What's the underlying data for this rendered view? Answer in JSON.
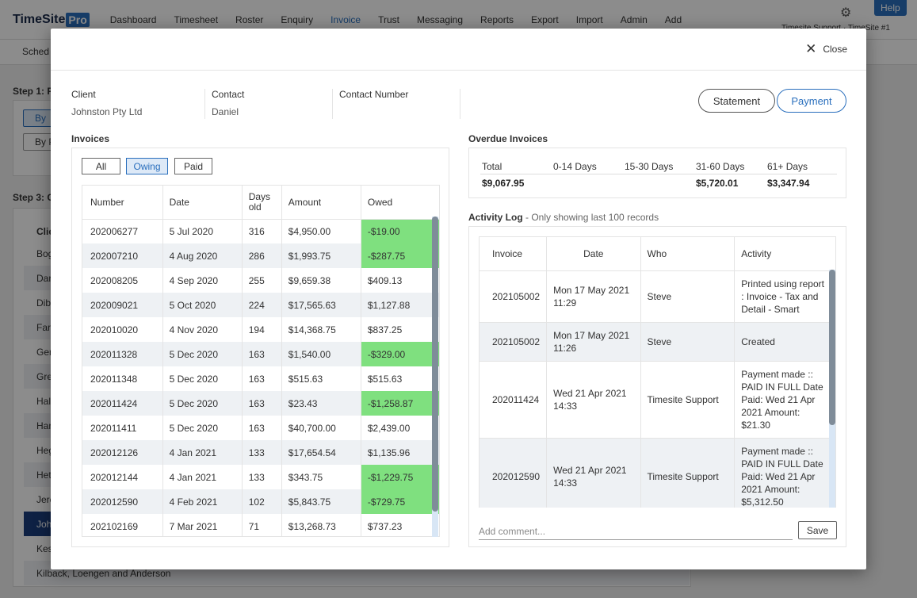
{
  "app": {
    "logo_main": "TimeSite",
    "logo_pro": "Pro",
    "nav": [
      "Dashboard",
      "Timesheet",
      "Roster",
      "Enquiry",
      "Invoice",
      "Trust",
      "Messaging",
      "Reports",
      "Export",
      "Import",
      "Admin",
      "Add"
    ],
    "help_label": "Help",
    "support_text": "Timesite Support · TimeSite #1",
    "subbar_text": "Sched",
    "step1": "Step 1: Fi",
    "step3": "Step 3: Cl",
    "bg_btn1": "By",
    "bg_btn2": "By P",
    "bg_col": "Clie",
    "bg_rows": [
      "Bog",
      "Dar",
      "Dibl",
      "Farr",
      "Ger",
      "Gre",
      "Hal",
      "Har",
      "Heg",
      "Het",
      "Jere",
      "Joh",
      "Kes",
      "Kilback, Loengen and Anderson"
    ]
  },
  "modal": {
    "close_label": "Close",
    "client_label": "Client",
    "client_value": "Johnston Pty Ltd",
    "contact_label": "Contact",
    "contact_value": "Daniel",
    "contact_number_label": "Contact Number",
    "contact_number_value": "",
    "statement_label": "Statement",
    "payment_label": "Payment",
    "invoices_title": "Invoices",
    "filters": {
      "all": "All",
      "owing": "Owing",
      "paid": "Paid"
    },
    "invoice_columns": {
      "number": "Number",
      "date": "Date",
      "days": "Days old",
      "amount": "Amount",
      "owed": "Owed"
    },
    "invoices": [
      {
        "number": "202006277",
        "date": "5 Jul 2020",
        "days": "316",
        "amount": "$4,950.00",
        "owed": "-$19.00",
        "negative": true
      },
      {
        "number": "202007210",
        "date": "4 Aug 2020",
        "days": "286",
        "amount": "$1,993.75",
        "owed": "-$287.75",
        "negative": true
      },
      {
        "number": "202008205",
        "date": "4 Sep 2020",
        "days": "255",
        "amount": "$9,659.38",
        "owed": "$409.13",
        "negative": false
      },
      {
        "number": "202009021",
        "date": "5 Oct 2020",
        "days": "224",
        "amount": "$17,565.63",
        "owed": "$1,127.88",
        "negative": false
      },
      {
        "number": "202010020",
        "date": "4 Nov 2020",
        "days": "194",
        "amount": "$14,368.75",
        "owed": "$837.25",
        "negative": false
      },
      {
        "number": "202011328",
        "date": "5 Dec 2020",
        "days": "163",
        "amount": "$1,540.00",
        "owed": "-$329.00",
        "negative": true
      },
      {
        "number": "202011348",
        "date": "5 Dec 2020",
        "days": "163",
        "amount": "$515.63",
        "owed": "$515.63",
        "negative": false
      },
      {
        "number": "202011424",
        "date": "5 Dec 2020",
        "days": "163",
        "amount": "$23.43",
        "owed": "-$1,258.87",
        "negative": true
      },
      {
        "number": "202011411",
        "date": "5 Dec 2020",
        "days": "163",
        "amount": "$40,700.00",
        "owed": "$2,439.00",
        "negative": false
      },
      {
        "number": "202012126",
        "date": "4 Jan 2021",
        "days": "133",
        "amount": "$17,654.54",
        "owed": "$1,135.96",
        "negative": false
      },
      {
        "number": "202012144",
        "date": "4 Jan 2021",
        "days": "133",
        "amount": "$343.75",
        "owed": "-$1,229.75",
        "negative": true
      },
      {
        "number": "202012590",
        "date": "4 Feb 2021",
        "days": "102",
        "amount": "$5,843.75",
        "owed": "-$729.75",
        "negative": true
      },
      {
        "number": "202102169",
        "date": "7 Mar 2021",
        "days": "71",
        "amount": "$13,268.73",
        "owed": "$737.23",
        "negative": false
      }
    ],
    "overdue_title": "Overdue Invoices",
    "overdue_columns": [
      "Total",
      "0-14 Days",
      "15-30 Days",
      "31-60 Days",
      "61+ Days"
    ],
    "overdue_values": [
      "$9,067.95",
      "",
      "",
      "$5,720.01",
      "$3,347.94"
    ],
    "activity_title": "Activity Log",
    "activity_note": " - Only showing last 100 records",
    "activity_columns": {
      "invoice": "Invoice",
      "date": "Date",
      "who": "Who",
      "activity": "Activity"
    },
    "activity": [
      {
        "invoice": "202105002",
        "date": "Mon 17 May 2021 11:29",
        "who": "Steve",
        "activity": "Printed using report : Invoice - Tax and Detail - Smart"
      },
      {
        "invoice": "202105002",
        "date": "Mon 17 May 2021 11:26",
        "who": "Steve",
        "activity": "Created"
      },
      {
        "invoice": "202011424",
        "date": "Wed 21 Apr 2021 14:33",
        "who": "Timesite Support",
        "activity": "Payment made :: PAID IN FULL Date Paid: Wed 21 Apr 2021 Amount: $21.30"
      },
      {
        "invoice": "202012590",
        "date": "Wed 21 Apr 2021 14:33",
        "who": "Timesite Support",
        "activity": "Payment made :: PAID IN FULL Date Paid: Wed 21 Apr 2021 Amount: $5,312.50"
      }
    ],
    "comment_placeholder": "Add comment...",
    "save_label": "Save"
  }
}
